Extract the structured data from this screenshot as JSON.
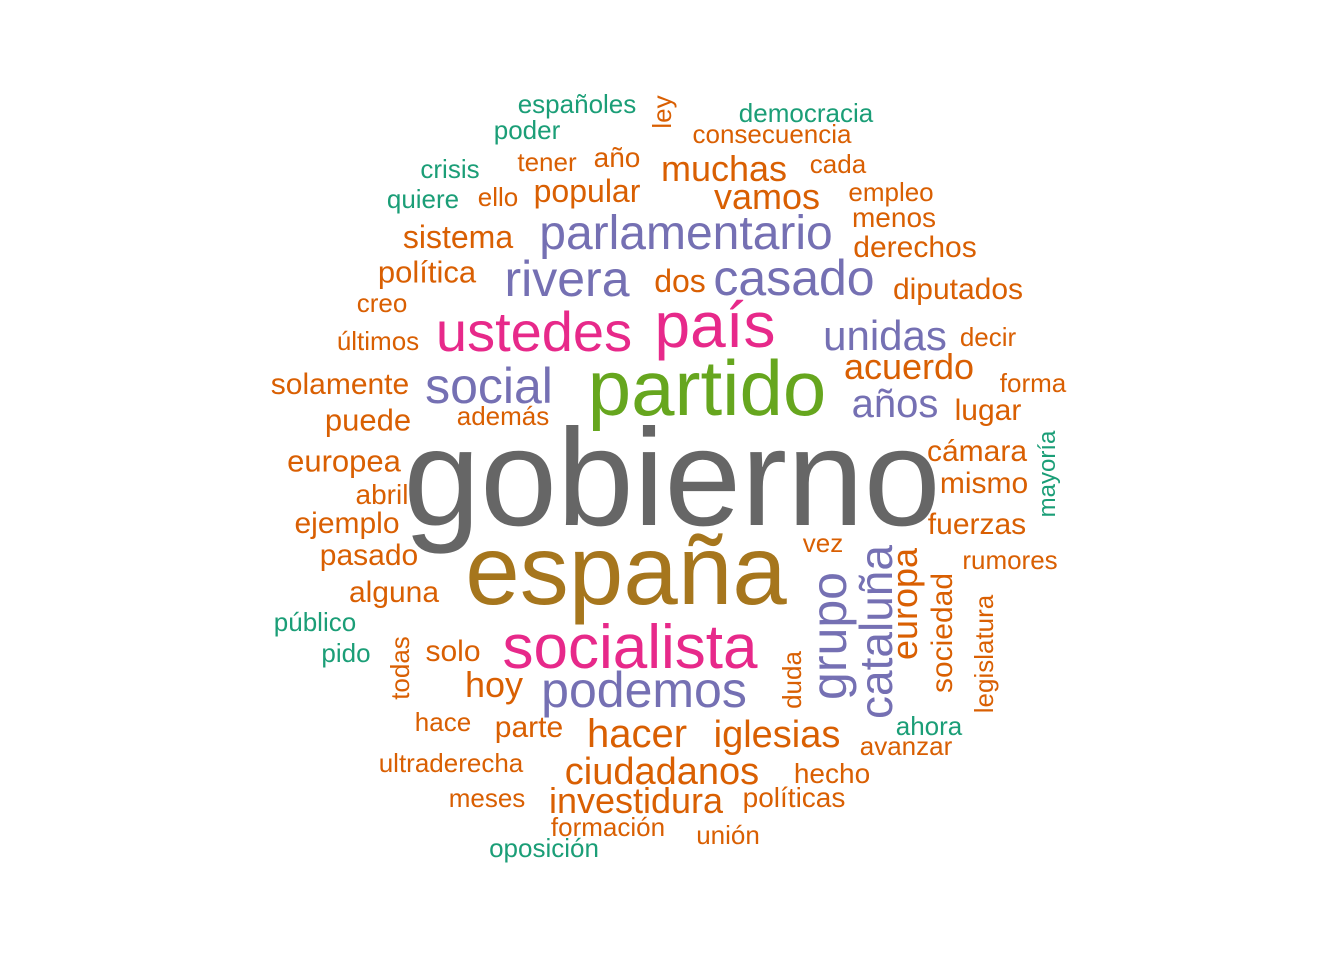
{
  "colors": {
    "gray": "#666666",
    "gold": "#A6761D",
    "green": "#66A61E",
    "magenta": "#E7298A",
    "purple": "#7570B3",
    "orange": "#D95F02",
    "teal": "#1B9E77"
  },
  "words": [
    {
      "text": "gobierno",
      "color": "gray",
      "rank": 1
    },
    {
      "text": "españa",
      "color": "gold",
      "rank": 2
    },
    {
      "text": "partido",
      "color": "green",
      "rank": 3
    },
    {
      "text": "país",
      "color": "magenta",
      "rank": 4
    },
    {
      "text": "socialista",
      "color": "magenta",
      "rank": 4
    },
    {
      "text": "ustedes",
      "color": "magenta",
      "rank": 4
    },
    {
      "text": "podemos",
      "color": "purple",
      "rank": 5
    },
    {
      "text": "social",
      "color": "purple",
      "rank": 5
    },
    {
      "text": "casado",
      "color": "purple",
      "rank": 5
    },
    {
      "text": "rivera",
      "color": "purple",
      "rank": 5
    },
    {
      "text": "parlamentario",
      "color": "purple",
      "rank": 5
    },
    {
      "text": "grupo",
      "color": "purple",
      "rank": 5
    },
    {
      "text": "cataluña",
      "color": "purple",
      "rank": 5
    },
    {
      "text": "unidas",
      "color": "purple",
      "rank": 5
    },
    {
      "text": "años",
      "color": "purple",
      "rank": 5
    },
    {
      "text": "hacer",
      "color": "orange",
      "rank": 6
    },
    {
      "text": "iglesias",
      "color": "orange",
      "rank": 6
    },
    {
      "text": "ciudadanos",
      "color": "orange",
      "rank": 6
    },
    {
      "text": "investidura",
      "color": "orange",
      "rank": 6
    },
    {
      "text": "muchas",
      "color": "orange",
      "rank": 6
    },
    {
      "text": "vamos",
      "color": "orange",
      "rank": 6
    },
    {
      "text": "acuerdo",
      "color": "orange",
      "rank": 6
    },
    {
      "text": "europa",
      "color": "orange",
      "rank": 6
    },
    {
      "text": "hoy",
      "color": "orange",
      "rank": 6
    },
    {
      "text": "popular",
      "color": "orange",
      "rank": 7
    },
    {
      "text": "sistema",
      "color": "orange",
      "rank": 7
    },
    {
      "text": "política",
      "color": "orange",
      "rank": 7
    },
    {
      "text": "dos",
      "color": "orange",
      "rank": 7
    },
    {
      "text": "diputados",
      "color": "orange",
      "rank": 7
    },
    {
      "text": "derechos",
      "color": "orange",
      "rank": 7
    },
    {
      "text": "solamente",
      "color": "orange",
      "rank": 7
    },
    {
      "text": "puede",
      "color": "orange",
      "rank": 7
    },
    {
      "text": "europea",
      "color": "orange",
      "rank": 7
    },
    {
      "text": "ejemplo",
      "color": "orange",
      "rank": 7
    },
    {
      "text": "pasado",
      "color": "orange",
      "rank": 7
    },
    {
      "text": "alguna",
      "color": "orange",
      "rank": 7
    },
    {
      "text": "solo",
      "color": "orange",
      "rank": 7
    },
    {
      "text": "parte",
      "color": "orange",
      "rank": 7
    },
    {
      "text": "mismo",
      "color": "orange",
      "rank": 7
    },
    {
      "text": "fuerzas",
      "color": "orange",
      "rank": 7
    },
    {
      "text": "cámara",
      "color": "orange",
      "rank": 7
    },
    {
      "text": "lugar",
      "color": "orange",
      "rank": 7
    },
    {
      "text": "sociedad",
      "color": "orange",
      "rank": 7
    },
    {
      "text": "abril",
      "color": "orange",
      "rank": 7
    },
    {
      "text": "hecho",
      "color": "orange",
      "rank": 7
    },
    {
      "text": "políticas",
      "color": "orange",
      "rank": 7
    },
    {
      "text": "además",
      "color": "orange",
      "rank": 8
    },
    {
      "text": "últimos",
      "color": "orange",
      "rank": 8
    },
    {
      "text": "creo",
      "color": "orange",
      "rank": 8
    },
    {
      "text": "tener",
      "color": "orange",
      "rank": 8
    },
    {
      "text": "año",
      "color": "orange",
      "rank": 8
    },
    {
      "text": "ello",
      "color": "orange",
      "rank": 8
    },
    {
      "text": "cada",
      "color": "orange",
      "rank": 8
    },
    {
      "text": "empleo",
      "color": "orange",
      "rank": 8
    },
    {
      "text": "menos",
      "color": "orange",
      "rank": 8
    },
    {
      "text": "decir",
      "color": "orange",
      "rank": 8
    },
    {
      "text": "forma",
      "color": "orange",
      "rank": 8
    },
    {
      "text": "consecuencia",
      "color": "orange",
      "rank": 8
    },
    {
      "text": "ley",
      "color": "orange",
      "rank": 8
    },
    {
      "text": "vez",
      "color": "orange",
      "rank": 8
    },
    {
      "text": "rumores",
      "color": "orange",
      "rank": 8
    },
    {
      "text": "duda",
      "color": "orange",
      "rank": 8
    },
    {
      "text": "todas",
      "color": "orange",
      "rank": 8
    },
    {
      "text": "legislatura",
      "color": "orange",
      "rank": 8
    },
    {
      "text": "hace",
      "color": "orange",
      "rank": 8
    },
    {
      "text": "ultraderecha",
      "color": "orange",
      "rank": 8
    },
    {
      "text": "avanzar",
      "color": "orange",
      "rank": 8
    },
    {
      "text": "meses",
      "color": "orange",
      "rank": 8
    },
    {
      "text": "formación",
      "color": "orange",
      "rank": 8
    },
    {
      "text": "unión",
      "color": "orange",
      "rank": 8
    },
    {
      "text": "españoles",
      "color": "teal",
      "rank": 8
    },
    {
      "text": "poder",
      "color": "teal",
      "rank": 8
    },
    {
      "text": "democracia",
      "color": "teal",
      "rank": 8
    },
    {
      "text": "crisis",
      "color": "teal",
      "rank": 8
    },
    {
      "text": "quiere",
      "color": "teal",
      "rank": 8
    },
    {
      "text": "mayoría",
      "color": "teal",
      "rank": 8
    },
    {
      "text": "público",
      "color": "teal",
      "rank": 8
    },
    {
      "text": "pido",
      "color": "teal",
      "rank": 8
    },
    {
      "text": "ahora",
      "color": "teal",
      "rank": 8
    },
    {
      "text": "oposición",
      "color": "teal",
      "rank": 8
    }
  ]
}
